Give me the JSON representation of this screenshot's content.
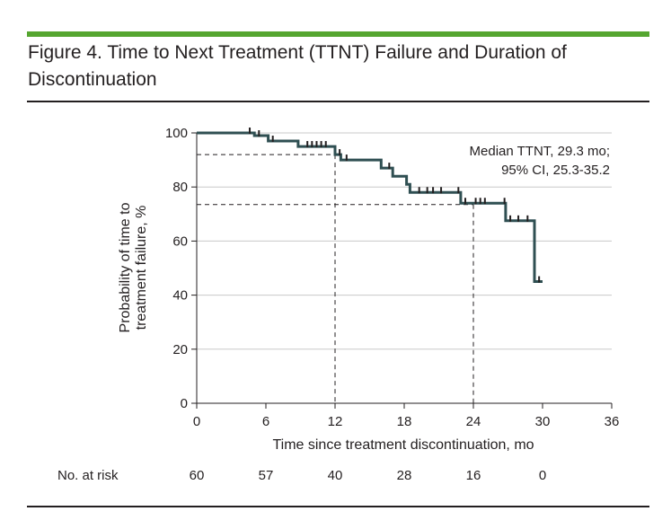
{
  "figure": {
    "title": "Figure 4. Time to Next Treatment (TTNT) Failure and Duration of Discontinuation",
    "accent_color": "#55a630",
    "curve_color": "#2f4f52"
  },
  "chart_data": {
    "type": "line",
    "step": true,
    "xlabel": "Time since treatment discontinuation, mo",
    "ylabel": [
      "Probability of time to",
      "treatment failure, %"
    ],
    "xlim": [
      0,
      36
    ],
    "ylim": [
      0,
      100
    ],
    "x_ticks": [
      0,
      6,
      12,
      18,
      24,
      30,
      36
    ],
    "y_ticks": [
      0,
      20,
      40,
      60,
      80,
      100
    ],
    "grid": "horizontal",
    "annotation": [
      "Median TTNT, 29.3 mo;",
      "95% CI, 25.3-35.2"
    ],
    "reference_lines": [
      {
        "y": 92,
        "x_end": 12
      },
      {
        "y": 73.5,
        "x_end": 24
      }
    ],
    "series": [
      {
        "x": [
          0,
          5,
          5,
          6.2,
          6.2,
          8.8,
          8.8,
          12,
          12,
          12.5,
          12.5,
          16,
          16,
          17,
          17,
          18.2,
          18.2,
          18.5,
          18.5,
          22.9,
          22.9,
          26.8,
          26.8,
          29.3,
          29.3,
          30
        ],
        "y": [
          100,
          100,
          99,
          99,
          97,
          97,
          95,
          95,
          92,
          92,
          90,
          90,
          87,
          87,
          84,
          84,
          81,
          81,
          78,
          78,
          74,
          74,
          67.5,
          67.5,
          45,
          45
        ]
      }
    ],
    "censor_marks": [
      {
        "x": 4.6,
        "y": 100
      },
      {
        "x": 5.4,
        "y": 99
      },
      {
        "x": 6.6,
        "y": 97
      },
      {
        "x": 9.6,
        "y": 95
      },
      {
        "x": 10.0,
        "y": 95
      },
      {
        "x": 10.4,
        "y": 95
      },
      {
        "x": 10.8,
        "y": 95
      },
      {
        "x": 11.2,
        "y": 95
      },
      {
        "x": 12.4,
        "y": 92
      },
      {
        "x": 13.0,
        "y": 90
      },
      {
        "x": 16.7,
        "y": 87
      },
      {
        "x": 19.3,
        "y": 78
      },
      {
        "x": 20.0,
        "y": 78
      },
      {
        "x": 20.5,
        "y": 78
      },
      {
        "x": 21.2,
        "y": 78
      },
      {
        "x": 22.7,
        "y": 78
      },
      {
        "x": 23.3,
        "y": 74
      },
      {
        "x": 24.2,
        "y": 74
      },
      {
        "x": 24.6,
        "y": 74
      },
      {
        "x": 25.0,
        "y": 74
      },
      {
        "x": 26.7,
        "y": 74
      },
      {
        "x": 27.2,
        "y": 67.5
      },
      {
        "x": 27.9,
        "y": 67.5
      },
      {
        "x": 28.7,
        "y": 67.5
      },
      {
        "x": 29.7,
        "y": 45
      }
    ],
    "risk_table": {
      "label": "No. at risk",
      "times": [
        0,
        6,
        12,
        18,
        24,
        30
      ],
      "counts": [
        "60",
        "57",
        "40",
        "28",
        "16",
        "0"
      ]
    }
  }
}
